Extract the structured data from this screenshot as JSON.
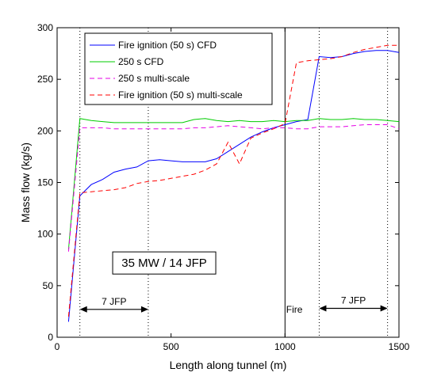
{
  "chart_data": {
    "type": "line",
    "title": "",
    "xlabel": "Length along tunnel (m)",
    "ylabel": "Mass flow (kg/s)",
    "xlim": [
      0,
      1500
    ],
    "ylim": [
      0,
      300
    ],
    "xticks": [
      "0",
      "500",
      "1000",
      "1500"
    ],
    "yticks": [
      "0",
      "50",
      "100",
      "150",
      "200",
      "250",
      "300"
    ],
    "grid": false,
    "legend_position": "top-left",
    "series": [
      {
        "name": "Fire ignition (50 s) CFD",
        "color": "#0000ff",
        "style": "solid",
        "points": [
          [
            50,
            15
          ],
          [
            100,
            137
          ],
          [
            150,
            148
          ],
          [
            200,
            153
          ],
          [
            250,
            160
          ],
          [
            300,
            163
          ],
          [
            350,
            165
          ],
          [
            400,
            171
          ],
          [
            450,
            172
          ],
          [
            500,
            171
          ],
          [
            550,
            170
          ],
          [
            600,
            170
          ],
          [
            650,
            170
          ],
          [
            700,
            173
          ],
          [
            750,
            180
          ],
          [
            800,
            187
          ],
          [
            850,
            194
          ],
          [
            900,
            199
          ],
          [
            950,
            203
          ],
          [
            1000,
            206
          ],
          [
            1050,
            209
          ],
          [
            1100,
            211
          ],
          [
            1150,
            272
          ],
          [
            1200,
            271
          ],
          [
            1250,
            272
          ],
          [
            1300,
            275
          ],
          [
            1350,
            277
          ],
          [
            1400,
            278
          ],
          [
            1450,
            278
          ],
          [
            1500,
            276
          ]
        ]
      },
      {
        "name": "250 s CFD",
        "color": "#00cc00",
        "style": "solid",
        "points": [
          [
            50,
            85
          ],
          [
            100,
            212
          ],
          [
            150,
            210
          ],
          [
            200,
            209
          ],
          [
            250,
            208
          ],
          [
            300,
            208
          ],
          [
            350,
            208
          ],
          [
            400,
            208
          ],
          [
            450,
            208
          ],
          [
            500,
            208
          ],
          [
            550,
            208
          ],
          [
            600,
            211
          ],
          [
            650,
            212
          ],
          [
            700,
            210
          ],
          [
            750,
            209
          ],
          [
            800,
            210
          ],
          [
            850,
            209
          ],
          [
            900,
            209
          ],
          [
            950,
            210
          ],
          [
            1000,
            209
          ],
          [
            1050,
            210
          ],
          [
            1100,
            210
          ],
          [
            1150,
            212
          ],
          [
            1200,
            211
          ],
          [
            1250,
            211
          ],
          [
            1300,
            212
          ],
          [
            1350,
            211
          ],
          [
            1400,
            211
          ],
          [
            1450,
            210
          ],
          [
            1500,
            209
          ]
        ]
      },
      {
        "name": "250 s multi-scale",
        "color": "#e600e6",
        "style": "dashed",
        "points": [
          [
            50,
            83
          ],
          [
            100,
            203
          ],
          [
            150,
            203
          ],
          [
            200,
            203
          ],
          [
            250,
            202
          ],
          [
            300,
            202
          ],
          [
            350,
            202
          ],
          [
            400,
            202
          ],
          [
            450,
            202
          ],
          [
            500,
            202
          ],
          [
            550,
            202
          ],
          [
            600,
            203
          ],
          [
            650,
            203
          ],
          [
            700,
            204
          ],
          [
            750,
            205
          ],
          [
            800,
            204
          ],
          [
            850,
            203
          ],
          [
            900,
            202
          ],
          [
            950,
            203
          ],
          [
            1000,
            203
          ],
          [
            1050,
            202
          ],
          [
            1100,
            202
          ],
          [
            1150,
            204
          ],
          [
            1200,
            204
          ],
          [
            1250,
            204
          ],
          [
            1300,
            205
          ],
          [
            1350,
            206
          ],
          [
            1400,
            206
          ],
          [
            1450,
            206
          ],
          [
            1500,
            202
          ]
        ]
      },
      {
        "name": "Fire ignition (50 s) multi-scale",
        "color": "#ff0000",
        "style": "dashed",
        "points": [
          [
            50,
            20
          ],
          [
            100,
            140
          ],
          [
            150,
            141
          ],
          [
            200,
            142
          ],
          [
            250,
            143
          ],
          [
            300,
            145
          ],
          [
            350,
            149
          ],
          [
            400,
            151
          ],
          [
            450,
            152
          ],
          [
            500,
            154
          ],
          [
            550,
            156
          ],
          [
            600,
            158
          ],
          [
            650,
            162
          ],
          [
            700,
            168
          ],
          [
            750,
            189
          ],
          [
            800,
            168
          ],
          [
            850,
            193
          ],
          [
            900,
            198
          ],
          [
            950,
            202
          ],
          [
            1000,
            207
          ],
          [
            1050,
            266
          ],
          [
            1100,
            268
          ],
          [
            1150,
            269
          ],
          [
            1200,
            270
          ],
          [
            1250,
            272
          ],
          [
            1300,
            276
          ],
          [
            1350,
            279
          ],
          [
            1400,
            281
          ],
          [
            1450,
            283
          ],
          [
            1500,
            283
          ]
        ]
      }
    ],
    "vertical_lines": [
      {
        "x": 100,
        "style": "dotted"
      },
      {
        "x": 400,
        "style": "dotted"
      },
      {
        "x": 1000,
        "style": "solid"
      },
      {
        "x": 1150,
        "style": "dotted"
      },
      {
        "x": 1450,
        "style": "dotted"
      }
    ],
    "annotations": {
      "arrow_left": {
        "x_from": 100,
        "x_to": 400,
        "y": 27,
        "label": "7 JFP"
      },
      "arrow_right": {
        "x_from": 1150,
        "x_to": 1450,
        "y": 28,
        "label": "7 JFP"
      },
      "fire_label": {
        "x": 1005,
        "y": 27,
        "text": "Fire"
      },
      "box_label": {
        "x": 470,
        "y": 72,
        "text": "35 MW / 14 JFP"
      }
    }
  }
}
